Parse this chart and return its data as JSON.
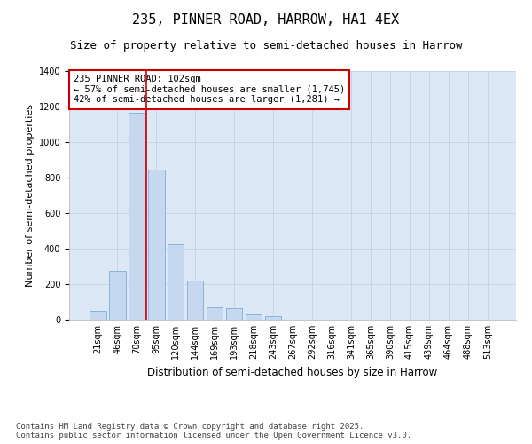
{
  "title_line1": "235, PINNER ROAD, HARROW, HA1 4EX",
  "title_line2": "Size of property relative to semi-detached houses in Harrow",
  "xlabel": "Distribution of semi-detached houses by size in Harrow",
  "ylabel": "Number of semi-detached properties",
  "categories": [
    "21sqm",
    "46sqm",
    "70sqm",
    "95sqm",
    "120sqm",
    "144sqm",
    "169sqm",
    "193sqm",
    "218sqm",
    "243sqm",
    "267sqm",
    "292sqm",
    "316sqm",
    "341sqm",
    "365sqm",
    "390sqm",
    "415sqm",
    "439sqm",
    "464sqm",
    "488sqm",
    "513sqm"
  ],
  "values": [
    48,
    275,
    1165,
    845,
    425,
    220,
    72,
    65,
    32,
    20,
    0,
    0,
    0,
    0,
    0,
    0,
    0,
    0,
    0,
    0,
    0
  ],
  "bar_color": "#c5d8f0",
  "bar_edge_color": "#7aadd4",
  "grid_color": "#c8d4e8",
  "background_color": "#dce8f5",
  "vline_color": "#cc0000",
  "vline_x": 3,
  "annotation_text": "235 PINNER ROAD: 102sqm\n← 57% of semi-detached houses are smaller (1,745)\n42% of semi-detached houses are larger (1,281) →",
  "annotation_box_color": "#cc0000",
  "ylim": [
    0,
    1400
  ],
  "yticks": [
    0,
    200,
    400,
    600,
    800,
    1000,
    1200,
    1400
  ],
  "footer": "Contains HM Land Registry data © Crown copyright and database right 2025.\nContains public sector information licensed under the Open Government Licence v3.0.",
  "title_fontsize": 11,
  "subtitle_fontsize": 9,
  "xlabel_fontsize": 8.5,
  "ylabel_fontsize": 8,
  "tick_fontsize": 7,
  "annot_fontsize": 7.5,
  "footer_fontsize": 6.5
}
